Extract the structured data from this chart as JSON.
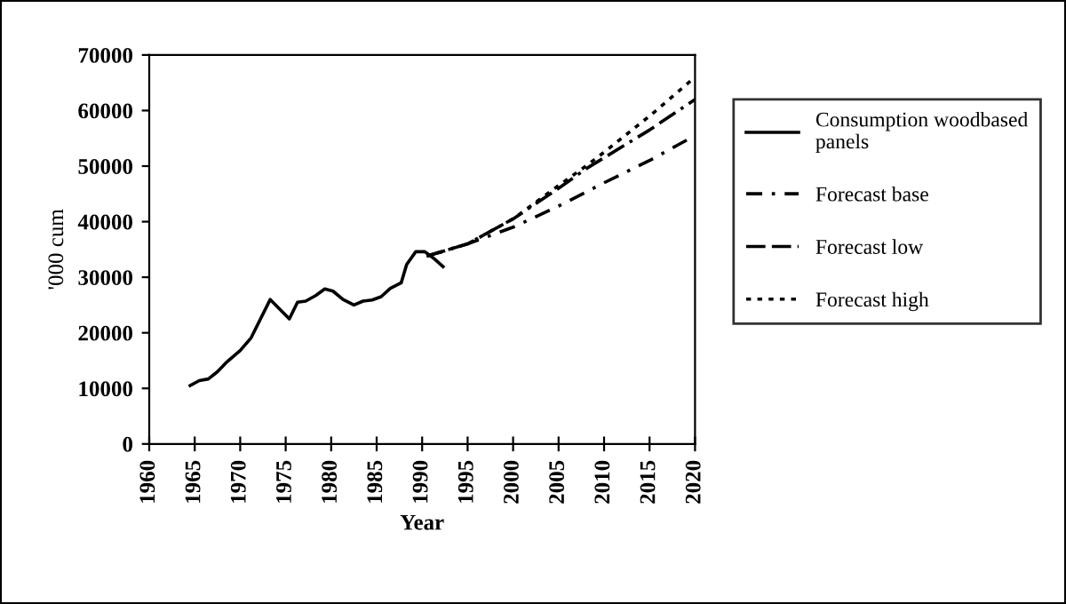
{
  "chart_data": {
    "type": "line",
    "xlabel": "Year",
    "ylabel": "'000 cum",
    "xlim": [
      1960,
      2020
    ],
    "ylim": [
      0,
      70000
    ],
    "xticks": [
      1960,
      1965,
      1970,
      1975,
      1980,
      1985,
      1990,
      1995,
      2000,
      2005,
      2010,
      2015,
      2020
    ],
    "yticks": [
      0,
      10000,
      20000,
      30000,
      40000,
      50000,
      60000,
      70000
    ],
    "grid": false,
    "legend": "right",
    "marker": "none",
    "series": [
      {
        "name": "Consumption woodbased\npanels",
        "color": "#000000",
        "line_style": "solid",
        "x": [
          1964.5,
          1965.5,
          1966.5,
          1967.5,
          1968.5,
          1970,
          1971.2,
          1973.3,
          1975.4,
          1976.3,
          1977.2,
          1978.3,
          1979.3,
          1980.2,
          1981.3,
          1982.5,
          1983.5,
          1984.5,
          1985.5,
          1986.5,
          1987.7,
          1988.3,
          1989.3,
          1990.3,
          1991.2,
          1992.3
        ],
        "values": [
          10500,
          11400,
          11700,
          13000,
          14700,
          16800,
          19100,
          26000,
          22500,
          25500,
          25700,
          26700,
          27900,
          27500,
          26000,
          25000,
          25700,
          25900,
          26500,
          28000,
          29000,
          32300,
          34600,
          34600,
          33500,
          31900
        ]
      },
      {
        "name": "Forecast base",
        "color": "#000000",
        "line_style": "dashdot",
        "x": [
          1990.5,
          1995,
          2000,
          2005,
          2010,
          2015,
          2020
        ],
        "values": [
          33800,
          36000,
          39000,
          42800,
          47000,
          51000,
          55500
        ]
      },
      {
        "name": "Forecast low",
        "color": "#000000",
        "line_style": "dashed",
        "x": [
          1990.5,
          1995,
          2000,
          2005,
          2008,
          2010,
          2015,
          2020
        ],
        "values": [
          33800,
          36000,
          40500,
          46000,
          49500,
          51500,
          56500,
          62000
        ]
      },
      {
        "name": "Forecast high",
        "color": "#000000",
        "line_style": "dotted",
        "x": [
          1990.5,
          1995,
          2000,
          2005,
          2008,
          2010,
          2015,
          2020
        ],
        "values": [
          33800,
          36000,
          40500,
          46500,
          50000,
          52500,
          59000,
          66000
        ]
      }
    ]
  }
}
